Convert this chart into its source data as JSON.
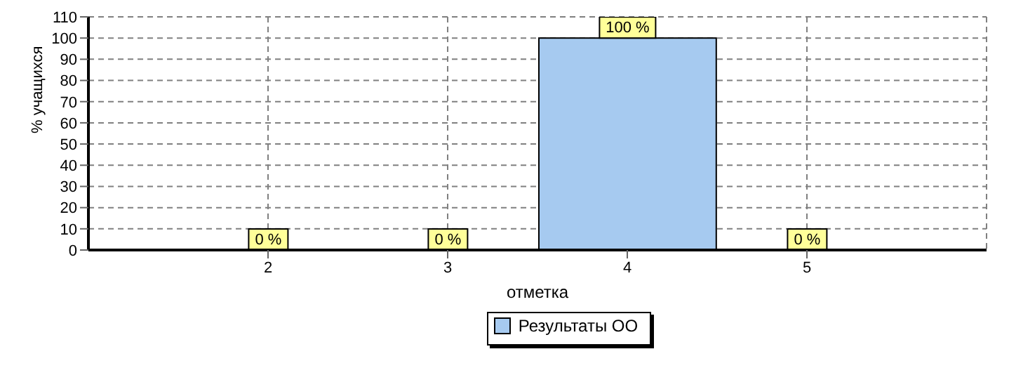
{
  "chart_data": {
    "type": "bar",
    "xlabel": "отметка",
    "ylabel": "% учащихся",
    "categories": [
      "2",
      "3",
      "4",
      "5"
    ],
    "series": [
      {
        "name": "Результаты ОО",
        "color": "#a6caf0",
        "values": [
          0,
          0,
          100,
          0
        ],
        "value_labels": [
          "0 %",
          "0 %",
          "100 %",
          "0 %"
        ]
      }
    ],
    "ylim": [
      0,
      110
    ],
    "yticks": [
      0,
      10,
      20,
      30,
      40,
      50,
      60,
      70,
      80,
      90,
      100,
      110
    ],
    "grid": true,
    "legend": "bottom"
  }
}
